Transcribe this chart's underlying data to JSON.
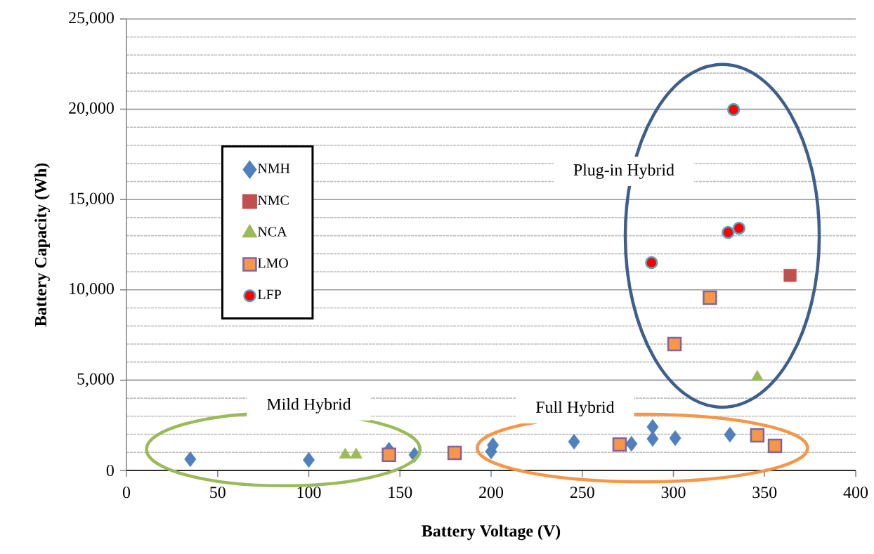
{
  "chart_data": {
    "type": "scatter",
    "xlabel": "Battery Voltage (V)",
    "ylabel": "Battery Capacity (Wh)",
    "xlim": [
      0,
      400
    ],
    "ylim": [
      0,
      25000
    ],
    "xticks": [
      0,
      50,
      100,
      150,
      200,
      250,
      300,
      350,
      400
    ],
    "yticks": [
      {
        "value": 0,
        "label": "0"
      },
      {
        "value": 5000,
        "label": "5,000"
      },
      {
        "value": 10000,
        "label": "10,000"
      },
      {
        "value": 15000,
        "label": "15,000"
      },
      {
        "value": 20000,
        "label": "20,000"
      },
      {
        "value": 25000,
        "label": "25,000"
      }
    ],
    "grid": "y",
    "legend": "left",
    "series": [
      {
        "name": "NMH",
        "color": "#4f81bd",
        "marker": "diamond",
        "x": [
          35,
          100,
          144,
          158,
          200,
          201,
          245.5,
          277,
          288.6,
          288.6,
          301,
          331
        ],
        "values": [
          620,
          580,
          1150,
          860,
          1050,
          1400,
          1590,
          1480,
          2410,
          1750,
          1790,
          1980
        ]
      },
      {
        "name": "NMC",
        "color": "#c0504d",
        "marker": "square",
        "x": [
          364
        ],
        "values": [
          10800
        ]
      },
      {
        "name": "NCA",
        "color": "#9bbb59",
        "marker": "triangle",
        "x": [
          120,
          126,
          346
        ],
        "values": [
          860,
          860,
          5170
        ]
      },
      {
        "name": "LMO",
        "color": "#f79646",
        "marker": "square",
        "x": [
          144,
          180,
          270.5,
          346,
          355.7,
          300.6,
          320
        ],
        "values": [
          860,
          970,
          1440,
          1940,
          1360,
          7000,
          9560
        ]
      },
      {
        "name": "LFP",
        "color": "#ff0000",
        "marker": "circle",
        "x": [
          333,
          330,
          336,
          288
        ],
        "values": [
          19980,
          13180,
          13410,
          11510
        ]
      }
    ],
    "annotations": [
      "Plug-in Hybrid",
      "Mild Hybrid",
      "Full Hybrid"
    ]
  }
}
